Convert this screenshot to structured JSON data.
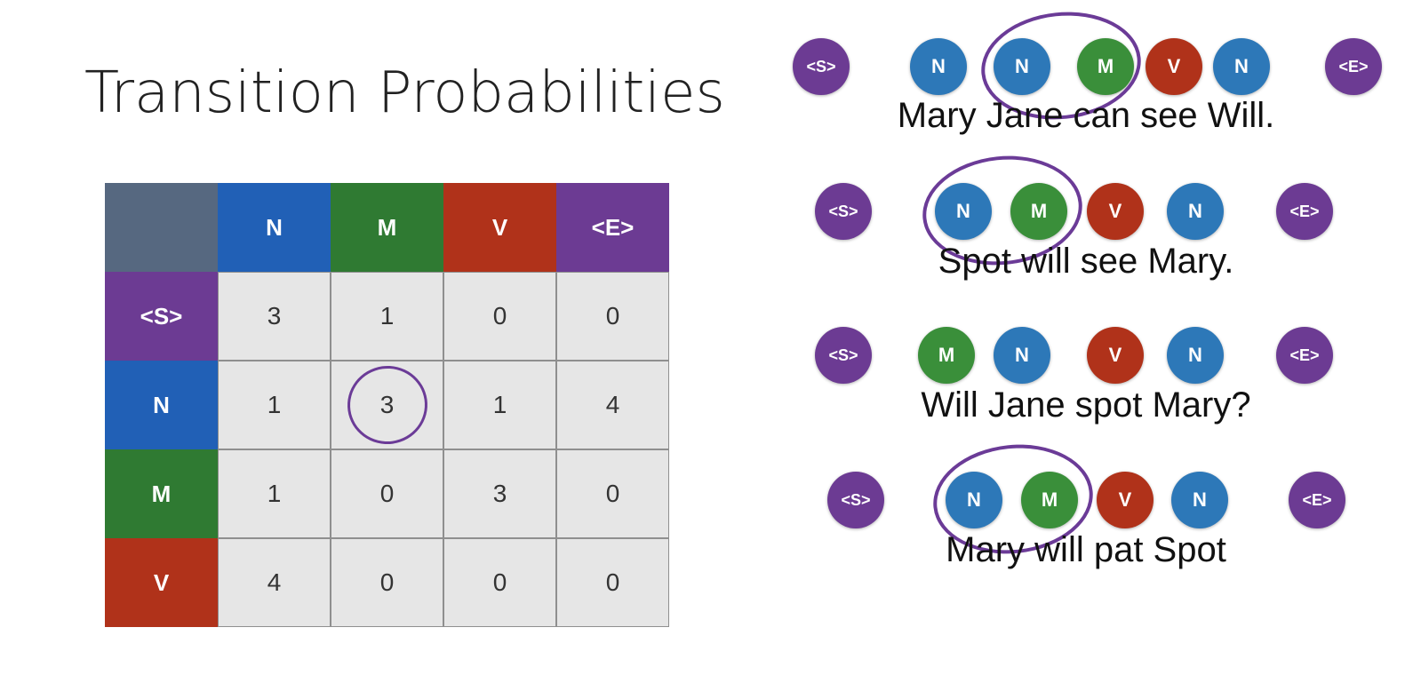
{
  "title": "Transition Probabilities",
  "colors": {
    "corner": "#566880",
    "N": "#2160b6",
    "M": "#2f7a32",
    "V": "#b0321a",
    "<E>": "#6c3b93",
    "<S>": "#6c3b93",
    "ringed": "#6b3b97"
  },
  "matrix": {
    "columns": [
      "N",
      "M",
      "V",
      "<E>"
    ],
    "rows": [
      {
        "label": "<S>",
        "values": [
          "3",
          "1",
          "0",
          "0"
        ]
      },
      {
        "label": "N",
        "values": [
          "1",
          "3",
          "1",
          "4"
        ]
      },
      {
        "label": "M",
        "values": [
          "1",
          "0",
          "3",
          "0"
        ]
      },
      {
        "label": "V",
        "values": [
          "4",
          "0",
          "0",
          "0"
        ]
      }
    ],
    "circled_cell": {
      "row": "N",
      "column": "M"
    }
  },
  "sentences": [
    {
      "text": "Mary Jane can see Will.",
      "tags": [
        "<S>",
        "N",
        "N",
        "M",
        "V",
        "N",
        "<E>"
      ],
      "circled": [
        "N",
        "M"
      ]
    },
    {
      "text": "Spot will see Mary.",
      "tags": [
        "<S>",
        "N",
        "M",
        "V",
        "N",
        "<E>"
      ],
      "circled": [
        "N",
        "M"
      ]
    },
    {
      "text": "Will Jane spot Mary?",
      "tags": [
        "<S>",
        "M",
        "N",
        "V",
        "N",
        "<E>"
      ],
      "circled": []
    },
    {
      "text": "Mary will pat Spot",
      "tags": [
        "<S>",
        "N",
        "M",
        "V",
        "N",
        "<E>"
      ],
      "circled": [
        "N",
        "M"
      ]
    }
  ]
}
